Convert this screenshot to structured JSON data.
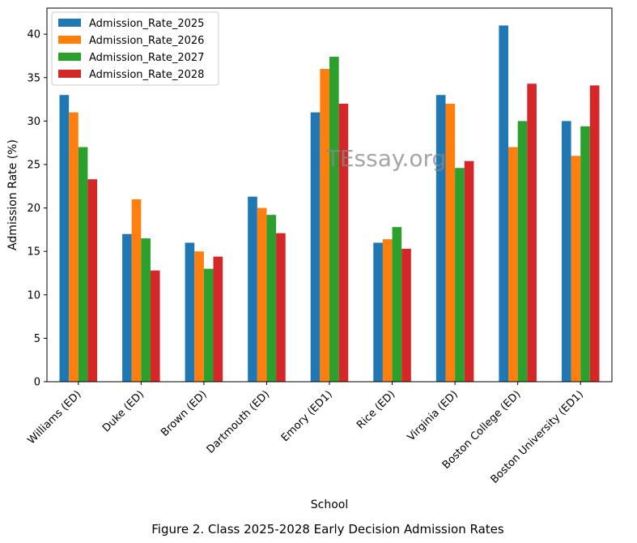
{
  "chart_data": {
    "type": "bar",
    "xlabel": "School",
    "ylabel": "Admission Rate (%)",
    "ylim": [
      0,
      43
    ],
    "yticks": [
      0,
      5,
      10,
      15,
      20,
      25,
      30,
      35,
      40
    ],
    "legend_position": "top-left",
    "grid": false,
    "categories": [
      "Williams (ED)",
      "Duke (ED)",
      "Brown (ED)",
      "Dartmouth (ED)",
      "Emory (ED1)",
      "Rice (ED)",
      "Virginia (ED)",
      "Boston College (ED)",
      "Boston University (ED1)"
    ],
    "series": [
      {
        "name": "Admission_Rate_2025",
        "color": "#1f77b4",
        "values": [
          33.0,
          17.0,
          16.0,
          21.3,
          31.0,
          16.0,
          33.0,
          41.0,
          30.0
        ]
      },
      {
        "name": "Admission_Rate_2026",
        "color": "#ff7f0e",
        "values": [
          31.0,
          21.0,
          15.0,
          20.0,
          36.0,
          16.4,
          32.0,
          27.0,
          26.0
        ]
      },
      {
        "name": "Admission_Rate_2027",
        "color": "#2ca02c",
        "values": [
          27.0,
          16.5,
          13.0,
          19.2,
          37.4,
          17.8,
          24.6,
          30.0,
          29.4
        ]
      },
      {
        "name": "Admission_Rate_2028",
        "color": "#d62728",
        "values": [
          23.3,
          12.8,
          14.4,
          17.1,
          32.0,
          15.3,
          25.4,
          34.3,
          34.1
        ]
      }
    ]
  },
  "watermark": "TEssay.org",
  "caption": "Figure 2. Class 2025-2028 Early Decision Admission Rates"
}
